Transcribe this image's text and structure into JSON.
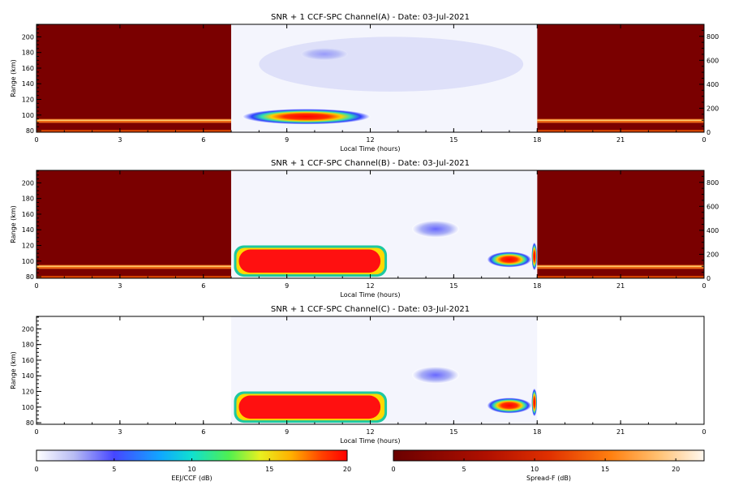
{
  "chart_data": [
    {
      "type": "heatmap",
      "title": "SNR + 1 CCF-SPC Channel(A) - Date: 03-Jul-2021",
      "xlabel": "Local Time (hours)",
      "ylabel": "Range (km)",
      "xlim": [
        0,
        24
      ],
      "ylim": [
        78,
        216
      ],
      "x_ticks": [
        "0",
        "3",
        "6",
        "9",
        "12",
        "15",
        "18",
        "21",
        "0"
      ],
      "y_ticks": [
        "80",
        "100",
        "120",
        "140",
        "160",
        "180",
        "200"
      ],
      "right_ylim": [
        0,
        900
      ],
      "right_ticks": [
        "0",
        "200",
        "400",
        "600",
        "800"
      ],
      "spread_f_windows": [
        [
          0,
          7
        ],
        [
          18,
          24
        ]
      ],
      "eej_window": [
        7,
        18
      ],
      "eej_regions": [
        {
          "t0": 7.4,
          "t1": 12.0,
          "r0": 88,
          "r1": 108,
          "peak_db": 16
        },
        {
          "t0": 9.5,
          "t1": 11.2,
          "r0": 170,
          "r1": 186,
          "peak_db": 4
        },
        {
          "t0": 8.0,
          "t1": 17.5,
          "r0": 130,
          "r1": 200,
          "peak_db": 1
        }
      ],
      "spread_f_band": {
        "r0": 90,
        "r1": 95,
        "peak_db": 14
      }
    },
    {
      "type": "heatmap",
      "title": "SNR + 1 CCF-SPC Channel(B) - Date: 03-Jul-2021",
      "xlabel": "Local Time (hours)",
      "ylabel": "Range (km)",
      "xlim": [
        0,
        24
      ],
      "ylim": [
        78,
        216
      ],
      "x_ticks": [
        "0",
        "3",
        "6",
        "9",
        "12",
        "15",
        "18",
        "21",
        "0"
      ],
      "y_ticks": [
        "80",
        "100",
        "120",
        "140",
        "160",
        "180",
        "200"
      ],
      "right_ylim": [
        0,
        900
      ],
      "right_ticks": [
        "0",
        "200",
        "400",
        "600",
        "800"
      ],
      "spread_f_windows": [
        [
          0,
          7
        ],
        [
          18,
          24
        ]
      ],
      "eej_window": [
        7,
        18
      ],
      "eej_regions": [
        {
          "t0": 7.1,
          "t1": 12.6,
          "r0": 80,
          "r1": 120,
          "peak_db": 20
        },
        {
          "t0": 16.2,
          "t1": 17.8,
          "r0": 92,
          "r1": 112,
          "peak_db": 18
        },
        {
          "t0": 17.8,
          "t1": 18.0,
          "r0": 88,
          "r1": 124,
          "peak_db": 18
        },
        {
          "t0": 13.5,
          "t1": 15.2,
          "r0": 130,
          "r1": 152,
          "peak_db": 8
        }
      ],
      "spread_f_band": {
        "r0": 90,
        "r1": 95,
        "peak_db": 14
      }
    },
    {
      "type": "heatmap",
      "title": "SNR + 1 CCF-SPC Channel(C) - Date: 03-Jul-2021",
      "xlabel": "Local Time (hours)",
      "ylabel": "Range (km)",
      "xlim": [
        0,
        24
      ],
      "ylim": [
        78,
        216
      ],
      "x_ticks": [
        "0",
        "3",
        "6",
        "9",
        "12",
        "15",
        "18",
        "21",
        "0"
      ],
      "y_ticks": [
        "80",
        "100",
        "120",
        "140",
        "160",
        "180",
        "200"
      ],
      "spread_f_windows": [],
      "eej_window": [
        7,
        18
      ],
      "eej_regions": [
        {
          "t0": 7.1,
          "t1": 12.6,
          "r0": 80,
          "r1": 120,
          "peak_db": 20
        },
        {
          "t0": 16.2,
          "t1": 17.8,
          "r0": 92,
          "r1": 112,
          "peak_db": 18
        },
        {
          "t0": 17.8,
          "t1": 18.0,
          "r0": 88,
          "r1": 124,
          "peak_db": 18
        },
        {
          "t0": 13.5,
          "t1": 15.2,
          "r0": 130,
          "r1": 152,
          "peak_db": 8
        }
      ]
    }
  ],
  "colorbars": [
    {
      "label": "EEJ/CCF (dB)",
      "range": [
        0,
        20
      ],
      "ticks": [
        "0",
        "5",
        "10",
        "15",
        "20"
      ],
      "colormap": "eej"
    },
    {
      "label": "Spread-F (dB)",
      "range": [
        0,
        22
      ],
      "ticks": [
        "0",
        "5",
        "10",
        "15",
        "20"
      ],
      "colormap": "spreadf"
    }
  ],
  "colors": {
    "spread_f_background": "#7a0000",
    "spread_f_band": "#ff7a1a",
    "eej_high": "#ff1010",
    "eej_mid": "#20c8a0",
    "eej_low": "#3c3cff",
    "eej_faint": "#c8ccf6"
  }
}
